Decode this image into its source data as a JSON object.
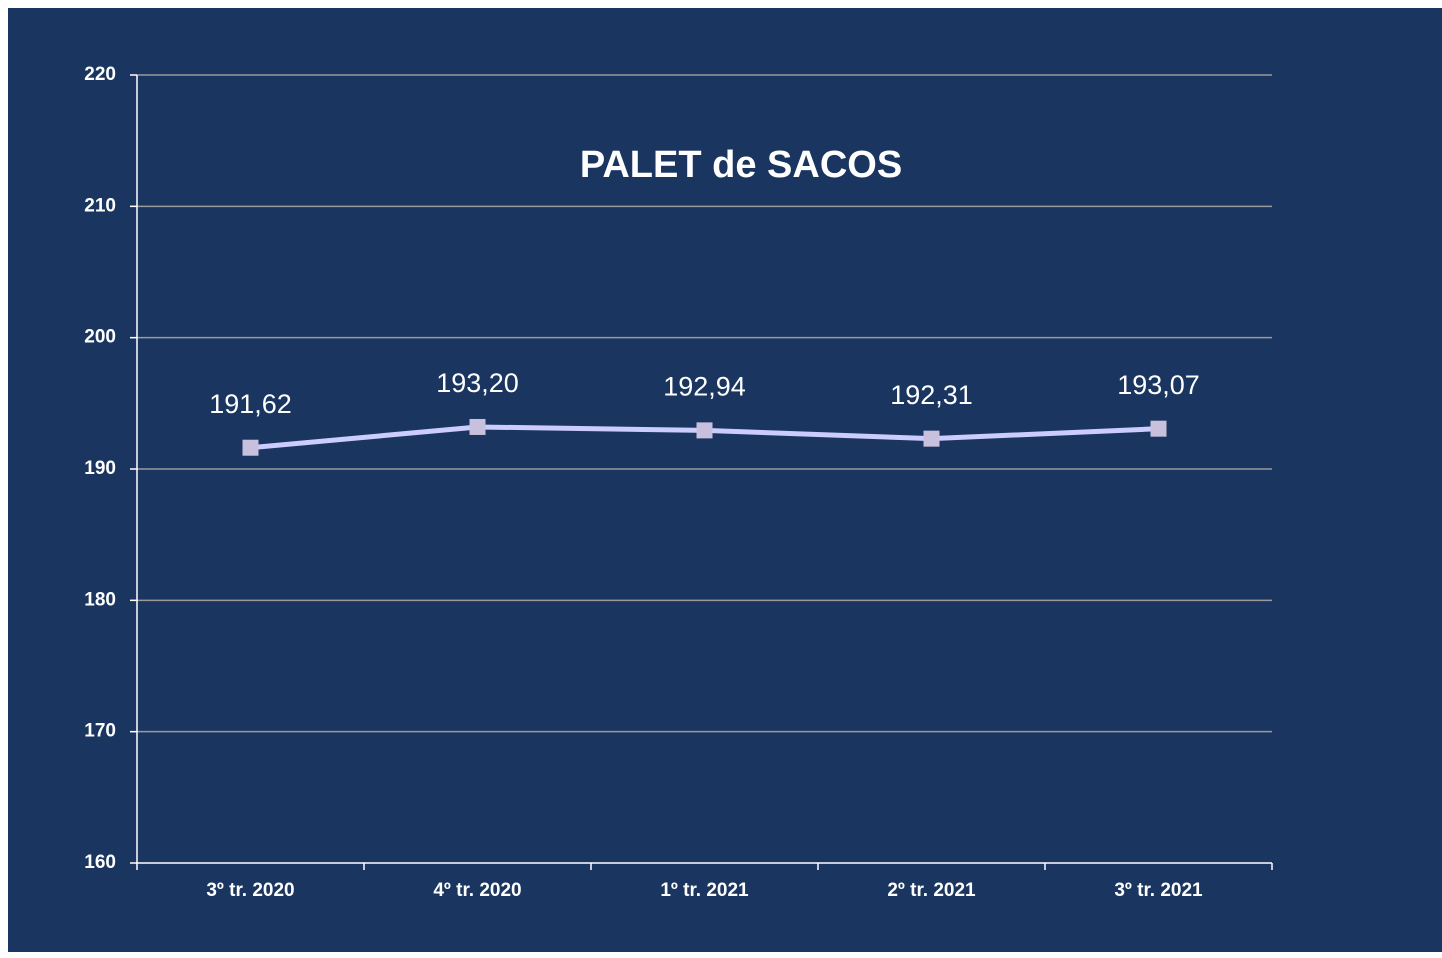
{
  "chart_data": {
    "type": "line",
    "title": "PALET de SACOS",
    "categories": [
      "3º tr. 2020",
      "4º tr. 2020",
      "1º tr. 2021",
      "2º tr. 2021",
      "3º tr. 2021"
    ],
    "series": [
      {
        "color": "#ccccff",
        "marker_color": "#c8c0dc",
        "values": [
          191.62,
          193.2,
          192.94,
          192.31,
          193.07
        ],
        "value_labels": [
          "191,62",
          "193,20",
          "192,94",
          "192,31",
          "193,07"
        ]
      }
    ],
    "ylim": [
      160,
      220
    ],
    "yticks": [
      160,
      170,
      180,
      190,
      200,
      210,
      220
    ],
    "grid": true
  }
}
